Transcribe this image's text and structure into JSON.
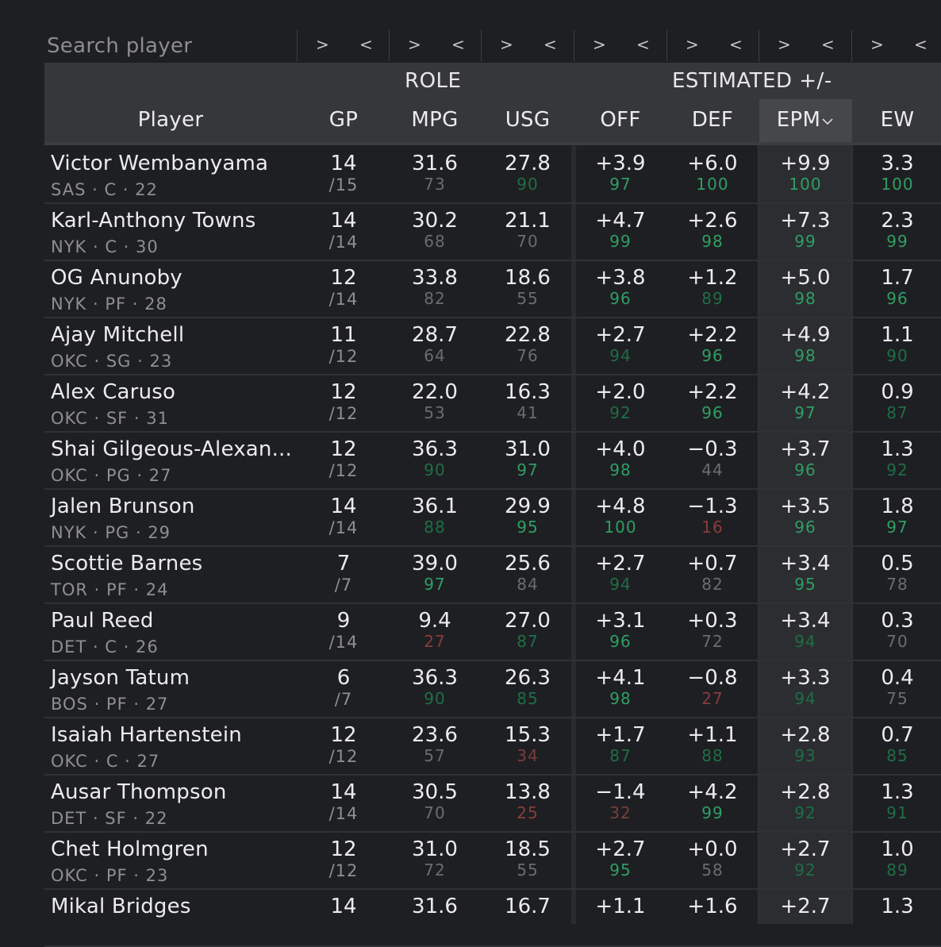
{
  "search": {
    "placeholder": "Search player"
  },
  "filter_arrows": {
    "right": ">",
    "left": "<"
  },
  "header": {
    "groups": {
      "role": "ROLE",
      "estimated": "ESTIMATED +/-"
    },
    "columns": {
      "player": "Player",
      "gp": "GP",
      "mpg": "MPG",
      "usg": "USG",
      "off": "OFF",
      "def": "DEF",
      "epm": "EPM",
      "ew": "EW"
    },
    "sort_indicator": "chevron-down-icon"
  },
  "colors": {
    "elite": "#2f9e63",
    "good": "#1e6e45",
    "neutral": "#6b6c70",
    "poor": "#7a3e3e",
    "bad": "#8a3c3c"
  },
  "rows": [
    {
      "name": "Victor Wembanyama",
      "meta": "SAS · C · 22",
      "gp": "14",
      "gp_total": "/15",
      "mpg": "31.6",
      "mpg_p": "73",
      "usg": "27.8",
      "usg_p": "90",
      "off": "+3.9",
      "off_p": "97",
      "def": "+6.0",
      "def_p": "100",
      "epm": "+9.9",
      "epm_p": "100",
      "ew": "3.3",
      "ew_p": "100"
    },
    {
      "name": "Karl-Anthony Towns",
      "meta": "NYK · C · 30",
      "gp": "14",
      "gp_total": "/14",
      "mpg": "30.2",
      "mpg_p": "68",
      "usg": "21.1",
      "usg_p": "70",
      "off": "+4.7",
      "off_p": "99",
      "def": "+2.6",
      "def_p": "98",
      "epm": "+7.3",
      "epm_p": "99",
      "ew": "2.3",
      "ew_p": "99"
    },
    {
      "name": "OG Anunoby",
      "meta": "NYK · PF · 28",
      "gp": "12",
      "gp_total": "/14",
      "mpg": "33.8",
      "mpg_p": "82",
      "usg": "18.6",
      "usg_p": "55",
      "off": "+3.8",
      "off_p": "96",
      "def": "+1.2",
      "def_p": "89",
      "epm": "+5.0",
      "epm_p": "98",
      "ew": "1.7",
      "ew_p": "96"
    },
    {
      "name": "Ajay Mitchell",
      "meta": "OKC · SG · 23",
      "gp": "11",
      "gp_total": "/12",
      "mpg": "28.7",
      "mpg_p": "64",
      "usg": "22.8",
      "usg_p": "76",
      "off": "+2.7",
      "off_p": "94",
      "def": "+2.2",
      "def_p": "96",
      "epm": "+4.9",
      "epm_p": "98",
      "ew": "1.1",
      "ew_p": "90"
    },
    {
      "name": "Alex Caruso",
      "meta": "OKC · SF · 31",
      "gp": "12",
      "gp_total": "/12",
      "mpg": "22.0",
      "mpg_p": "53",
      "usg": "16.3",
      "usg_p": "41",
      "off": "+2.0",
      "off_p": "92",
      "def": "+2.2",
      "def_p": "96",
      "epm": "+4.2",
      "epm_p": "97",
      "ew": "0.9",
      "ew_p": "87"
    },
    {
      "name": "Shai Gilgeous-Alexan...",
      "meta": "OKC · PG · 27",
      "gp": "12",
      "gp_total": "/12",
      "mpg": "36.3",
      "mpg_p": "90",
      "usg": "31.0",
      "usg_p": "97",
      "off": "+4.0",
      "off_p": "98",
      "def": "−0.3",
      "def_p": "44",
      "epm": "+3.7",
      "epm_p": "96",
      "ew": "1.3",
      "ew_p": "92"
    },
    {
      "name": "Jalen Brunson",
      "meta": "NYK · PG · 29",
      "gp": "14",
      "gp_total": "/14",
      "mpg": "36.1",
      "mpg_p": "88",
      "usg": "29.9",
      "usg_p": "95",
      "off": "+4.8",
      "off_p": "100",
      "def": "−1.3",
      "def_p": "16",
      "epm": "+3.5",
      "epm_p": "96",
      "ew": "1.8",
      "ew_p": "97"
    },
    {
      "name": "Scottie Barnes",
      "meta": "TOR · PF · 24",
      "gp": "7",
      "gp_total": "/7",
      "mpg": "39.0",
      "mpg_p": "97",
      "usg": "25.6",
      "usg_p": "84",
      "off": "+2.7",
      "off_p": "94",
      "def": "+0.7",
      "def_p": "82",
      "epm": "+3.4",
      "epm_p": "95",
      "ew": "0.5",
      "ew_p": "78"
    },
    {
      "name": "Paul Reed",
      "meta": "DET · C · 26",
      "gp": "9",
      "gp_total": "/14",
      "mpg": "9.4",
      "mpg_p": "27",
      "usg": "27.0",
      "usg_p": "87",
      "off": "+3.1",
      "off_p": "96",
      "def": "+0.3",
      "def_p": "72",
      "epm": "+3.4",
      "epm_p": "94",
      "ew": "0.3",
      "ew_p": "70"
    },
    {
      "name": "Jayson Tatum",
      "meta": "BOS · PF · 27",
      "gp": "6",
      "gp_total": "/7",
      "mpg": "36.3",
      "mpg_p": "90",
      "usg": "26.3",
      "usg_p": "85",
      "off": "+4.1",
      "off_p": "98",
      "def": "−0.8",
      "def_p": "27",
      "epm": "+3.3",
      "epm_p": "94",
      "ew": "0.4",
      "ew_p": "75"
    },
    {
      "name": "Isaiah Hartenstein",
      "meta": "OKC · C · 27",
      "gp": "12",
      "gp_total": "/12",
      "mpg": "23.6",
      "mpg_p": "57",
      "usg": "15.3",
      "usg_p": "34",
      "off": "+1.7",
      "off_p": "87",
      "def": "+1.1",
      "def_p": "88",
      "epm": "+2.8",
      "epm_p": "93",
      "ew": "0.7",
      "ew_p": "85"
    },
    {
      "name": "Ausar Thompson",
      "meta": "DET · SF · 22",
      "gp": "14",
      "gp_total": "/14",
      "mpg": "30.5",
      "mpg_p": "70",
      "usg": "13.8",
      "usg_p": "25",
      "off": "−1.4",
      "off_p": "32",
      "def": "+4.2",
      "def_p": "99",
      "epm": "+2.8",
      "epm_p": "92",
      "ew": "1.3",
      "ew_p": "91"
    },
    {
      "name": "Chet Holmgren",
      "meta": "OKC · PF · 23",
      "gp": "12",
      "gp_total": "/12",
      "mpg": "31.0",
      "mpg_p": "72",
      "usg": "18.5",
      "usg_p": "55",
      "off": "+2.7",
      "off_p": "95",
      "def": "+0.0",
      "def_p": "58",
      "epm": "+2.7",
      "epm_p": "92",
      "ew": "1.0",
      "ew_p": "89"
    },
    {
      "name": "Mikal Bridges",
      "meta": "",
      "gp": "14",
      "gp_total": "",
      "mpg": "31.6",
      "mpg_p": "",
      "usg": "16.7",
      "usg_p": "",
      "off": "+1.1",
      "off_p": "",
      "def": "+1.6",
      "def_p": "",
      "epm": "+2.7",
      "epm_p": "",
      "ew": "1.3",
      "ew_p": ""
    }
  ]
}
